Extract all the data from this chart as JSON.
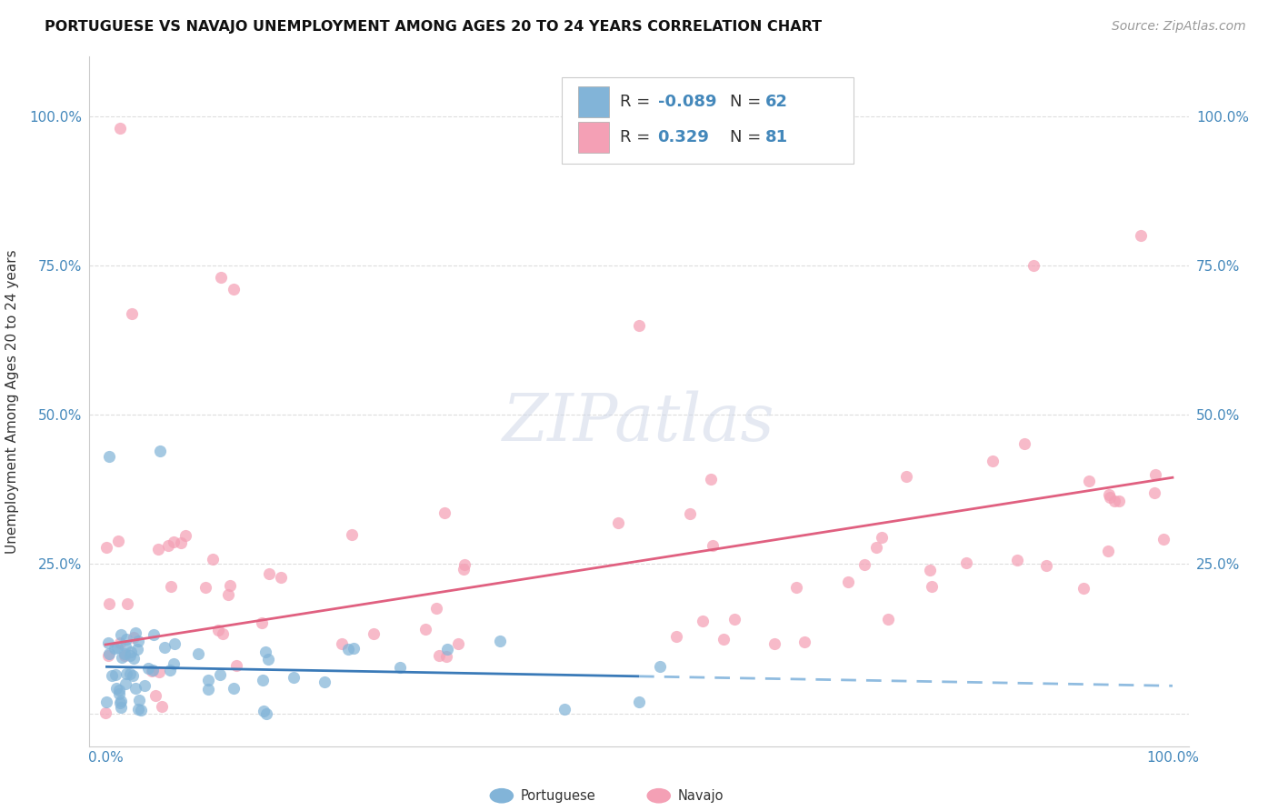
{
  "title": "PORTUGUESE VS NAVAJO UNEMPLOYMENT AMONG AGES 20 TO 24 YEARS CORRELATION CHART",
  "source": "Source: ZipAtlas.com",
  "ylabel": "Unemployment Among Ages 20 to 24 years",
  "background_color": "#ffffff",
  "watermark_text": "ZIPatlas",
  "legend_R_portuguese": "-0.089",
  "legend_N_portuguese": "62",
  "legend_R_navajo": "0.329",
  "legend_N_navajo": "81",
  "portuguese_color": "#82b4d8",
  "navajo_color": "#f4a0b5",
  "trend_portuguese_solid_color": "#3a7ab8",
  "trend_portuguese_dash_color": "#90bce0",
  "trend_navajo_color": "#e06080",
  "tick_color": "#4488bb",
  "grid_color": "#dddddd",
  "title_fontsize": 11.5,
  "source_fontsize": 10,
  "legend_fontsize": 13,
  "axis_label_fontsize": 11,
  "scatter_size": 90,
  "scatter_alpha": 0.72
}
